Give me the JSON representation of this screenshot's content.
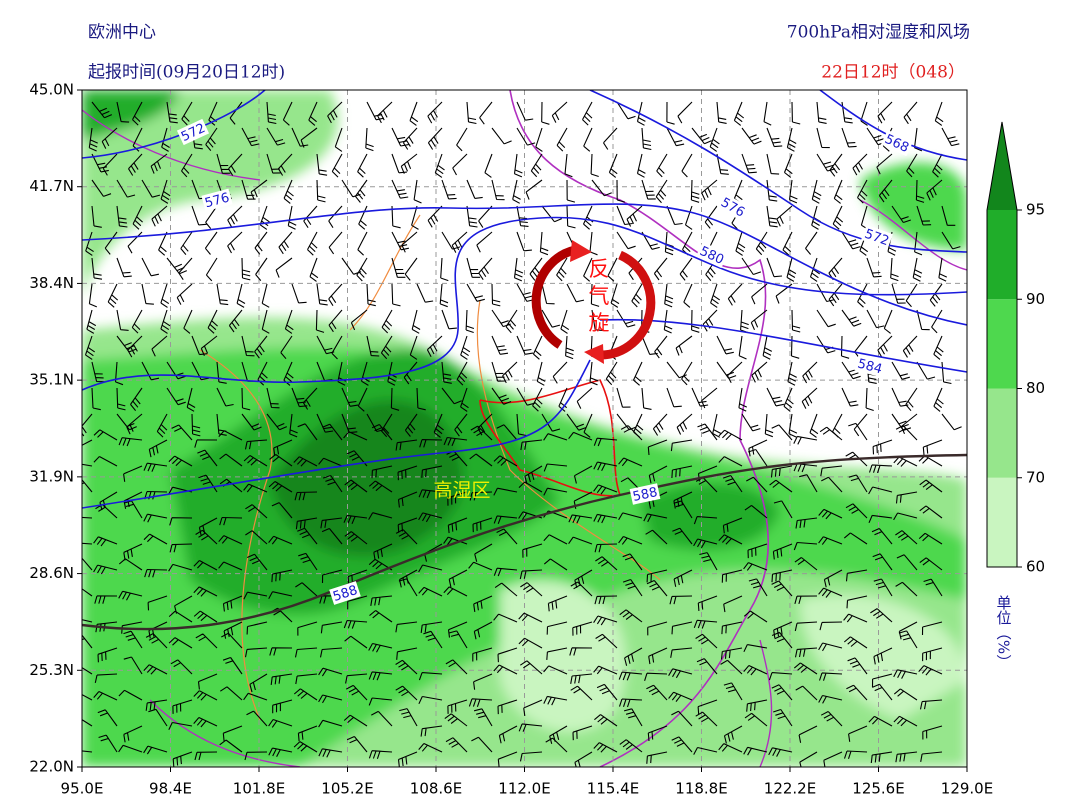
{
  "header": {
    "source": "欧洲中心",
    "init_time": "起报时间(09月20日12时)",
    "product": "700hPa相对湿度和风场",
    "valid_time": "22日12时（048）"
  },
  "map": {
    "lat_labels": [
      "45.0N",
      "41.7N",
      "38.4N",
      "35.1N",
      "31.9N",
      "28.6N",
      "25.3N",
      "22.0N"
    ],
    "lon_labels": [
      "95.0E",
      "98.4E",
      "101.8E",
      "105.2E",
      "108.6E",
      "112.0E",
      "115.4E",
      "118.8E",
      "122.2E",
      "125.6E",
      "129.0E"
    ],
    "contour_labels": [
      "572",
      "576",
      "580",
      "584",
      "568",
      "572",
      "576",
      "588",
      "588"
    ],
    "annotations": [
      "反气旋",
      "高湿区"
    ]
  },
  "colorbar": {
    "ticks": [
      60,
      70,
      80,
      90,
      95
    ],
    "colors": [
      "#c9f5c0",
      "#96e68c",
      "#4ed84e",
      "#20ad2a",
      "#12861c"
    ],
    "unit": "单位（%）"
  }
}
